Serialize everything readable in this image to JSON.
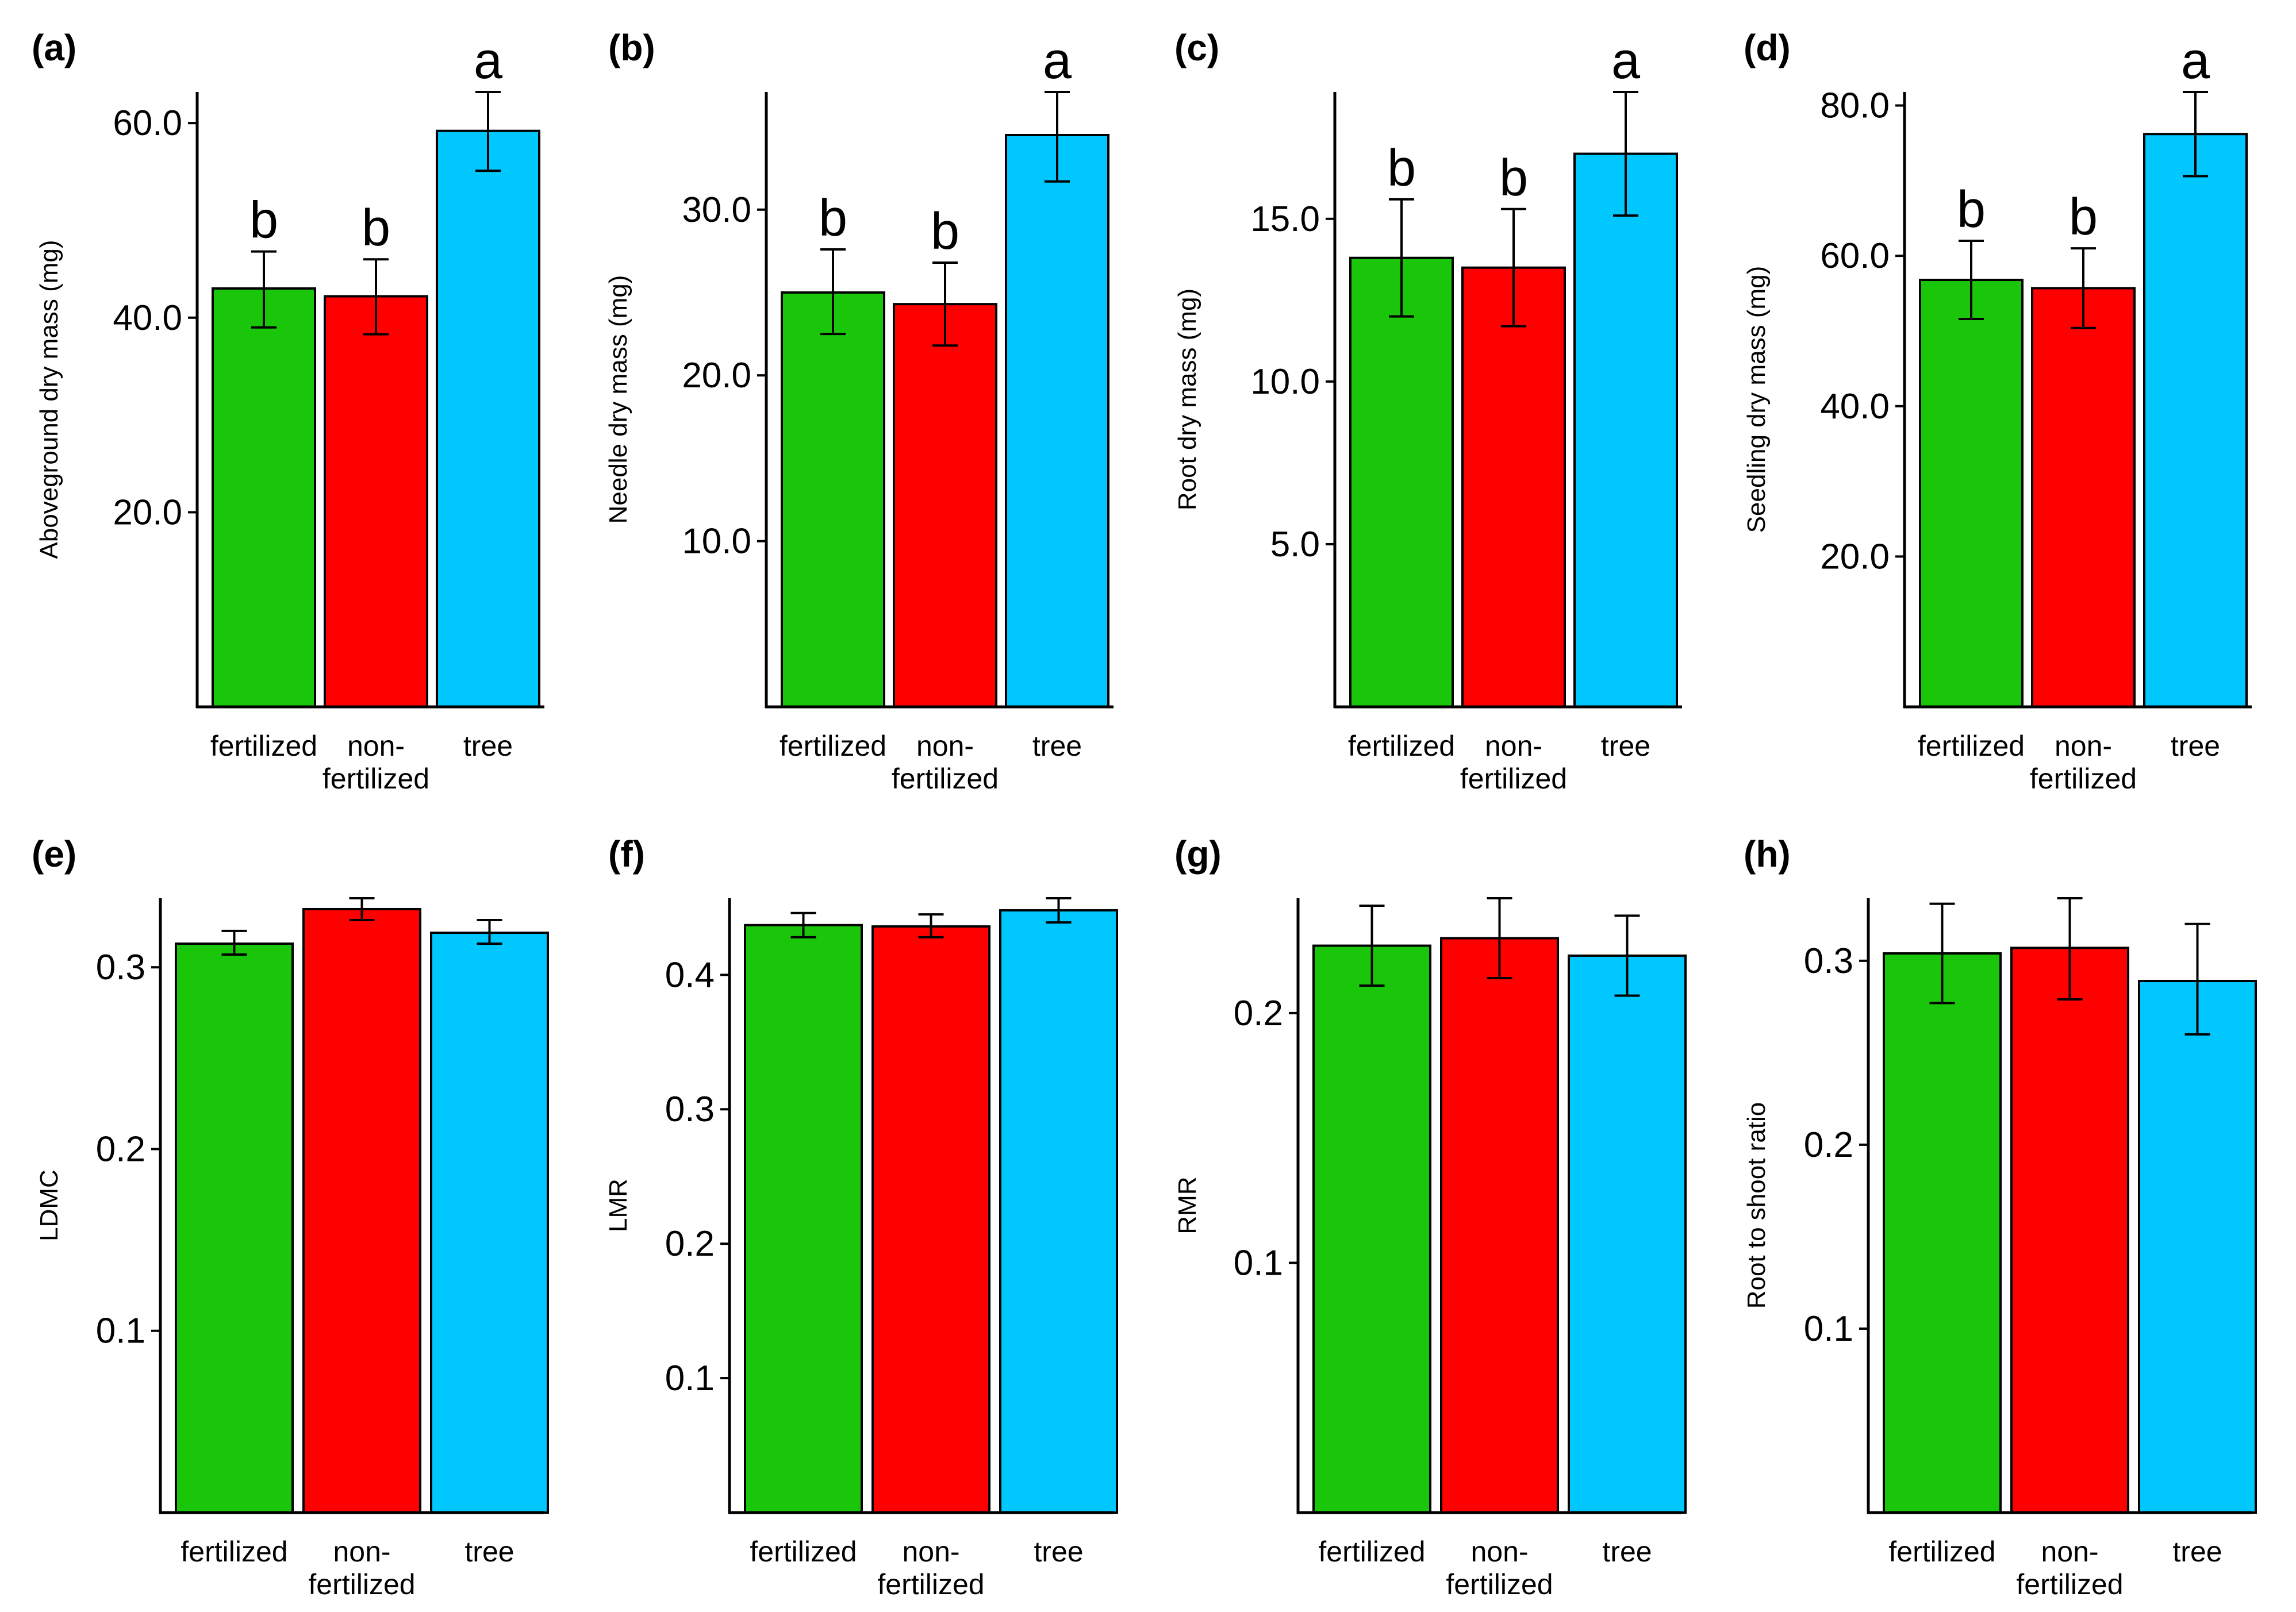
{
  "figure": {
    "categories": [
      "fertilized",
      "non-fertilized",
      "tree"
    ],
    "category_display": [
      [
        "fertilized"
      ],
      [
        "non-",
        "fertilized"
      ],
      [
        "tree"
      ]
    ],
    "colors": [
      "#1ac60a",
      "#ff0000",
      "#00c8ff"
    ]
  },
  "chart_data": [
    {
      "type": "bar",
      "panel": "(a)",
      "ylabel": "Aboveground dry mass (mg)",
      "categories": [
        "fertilized",
        "non-fertilized",
        "tree"
      ],
      "values": [
        43.0,
        42.2,
        59.2
      ],
      "error_low": [
        39.0,
        38.3,
        55.1
      ],
      "error_high": [
        46.8,
        46.0,
        63.2
      ],
      "significance": [
        "b",
        "b",
        "a"
      ],
      "ylim": [
        0,
        63.2
      ],
      "yticks": [
        20,
        40,
        60
      ],
      "ytick_labels": [
        "20.0",
        "40.0",
        "60.0"
      ]
    },
    {
      "type": "bar",
      "panel": "(b)",
      "ylabel": "Needle dry mass (mg)",
      "categories": [
        "fertilized",
        "non-fertilized",
        "tree"
      ],
      "values": [
        25.0,
        24.3,
        34.5
      ],
      "error_low": [
        22.5,
        21.8,
        31.7
      ],
      "error_high": [
        27.6,
        26.8,
        37.1
      ],
      "significance": [
        "b",
        "b",
        "a"
      ],
      "ylim": [
        0,
        37.1
      ],
      "yticks": [
        10,
        20,
        30
      ],
      "ytick_labels": [
        "10.0",
        "20.0",
        "30.0"
      ]
    },
    {
      "type": "bar",
      "panel": "(c)",
      "ylabel": "Root dry mass (mg)",
      "categories": [
        "fertilized",
        "non-fertilized",
        "tree"
      ],
      "values": [
        13.8,
        13.5,
        17.0
      ],
      "error_low": [
        12.0,
        11.7,
        15.1
      ],
      "error_high": [
        15.6,
        15.3,
        18.9
      ],
      "significance": [
        "b",
        "b",
        "a"
      ],
      "ylim": [
        0,
        18.9
      ],
      "yticks": [
        5,
        10,
        15
      ],
      "ytick_labels": [
        "5.0",
        "10.0",
        "15.0"
      ]
    },
    {
      "type": "bar",
      "panel": "(d)",
      "ylabel": "Seedling dry mass (mg)",
      "categories": [
        "fertilized",
        "non-fertilized",
        "tree"
      ],
      "values": [
        56.8,
        55.7,
        76.2
      ],
      "error_low": [
        51.6,
        50.4,
        70.6
      ],
      "error_high": [
        62.0,
        61.0,
        81.8
      ],
      "significance": [
        "b",
        "b",
        "a"
      ],
      "ylim": [
        0,
        81.8
      ],
      "yticks": [
        20,
        40,
        60,
        80
      ],
      "ytick_labels": [
        "20.0",
        "40.0",
        "60.0",
        "80.0"
      ]
    },
    {
      "type": "bar",
      "panel": "(e)",
      "ylabel": "LDMC",
      "categories": [
        "fertilized",
        "non-fertilized",
        "tree"
      ],
      "values": [
        0.313,
        0.332,
        0.319
      ],
      "error_low": [
        0.307,
        0.326,
        0.313
      ],
      "error_high": [
        0.32,
        0.338,
        0.326
      ],
      "ylim": [
        0,
        0.338
      ],
      "yticks": [
        0.1,
        0.2,
        0.3
      ],
      "ytick_labels": [
        "0.1",
        "0.2",
        "0.3"
      ]
    },
    {
      "type": "bar",
      "panel": "(f)",
      "ylabel": "LMR",
      "categories": [
        "fertilized",
        "non-fertilized",
        "tree"
      ],
      "values": [
        0.437,
        0.436,
        0.448
      ],
      "error_low": [
        0.428,
        0.428,
        0.439
      ],
      "error_high": [
        0.446,
        0.445,
        0.457
      ],
      "ylim": [
        0,
        0.457
      ],
      "yticks": [
        0.1,
        0.2,
        0.3,
        0.4
      ],
      "ytick_labels": [
        "0.1",
        "0.2",
        "0.3",
        "0.4"
      ]
    },
    {
      "type": "bar",
      "panel": "(g)",
      "ylabel": "RMR",
      "categories": [
        "fertilized",
        "non-fertilized",
        "tree"
      ],
      "values": [
        0.227,
        0.23,
        0.223
      ],
      "error_low": [
        0.211,
        0.214,
        0.207
      ],
      "error_high": [
        0.243,
        0.246,
        0.239
      ],
      "ylim": [
        0,
        0.246
      ],
      "yticks": [
        0.1,
        0.2
      ],
      "ytick_labels": [
        "0.1",
        "0.2"
      ]
    },
    {
      "type": "bar",
      "panel": "(h)",
      "ylabel": "Root to shoot ratio",
      "categories": [
        "fertilized",
        "non-fertilized",
        "tree"
      ],
      "values": [
        0.304,
        0.307,
        0.289
      ],
      "error_low": [
        0.277,
        0.279,
        0.26
      ],
      "error_high": [
        0.331,
        0.334,
        0.32
      ],
      "ylim": [
        0,
        0.334
      ],
      "yticks": [
        0.1,
        0.2,
        0.3
      ],
      "ytick_labels": [
        "0.1",
        "0.2",
        "0.3"
      ]
    }
  ]
}
